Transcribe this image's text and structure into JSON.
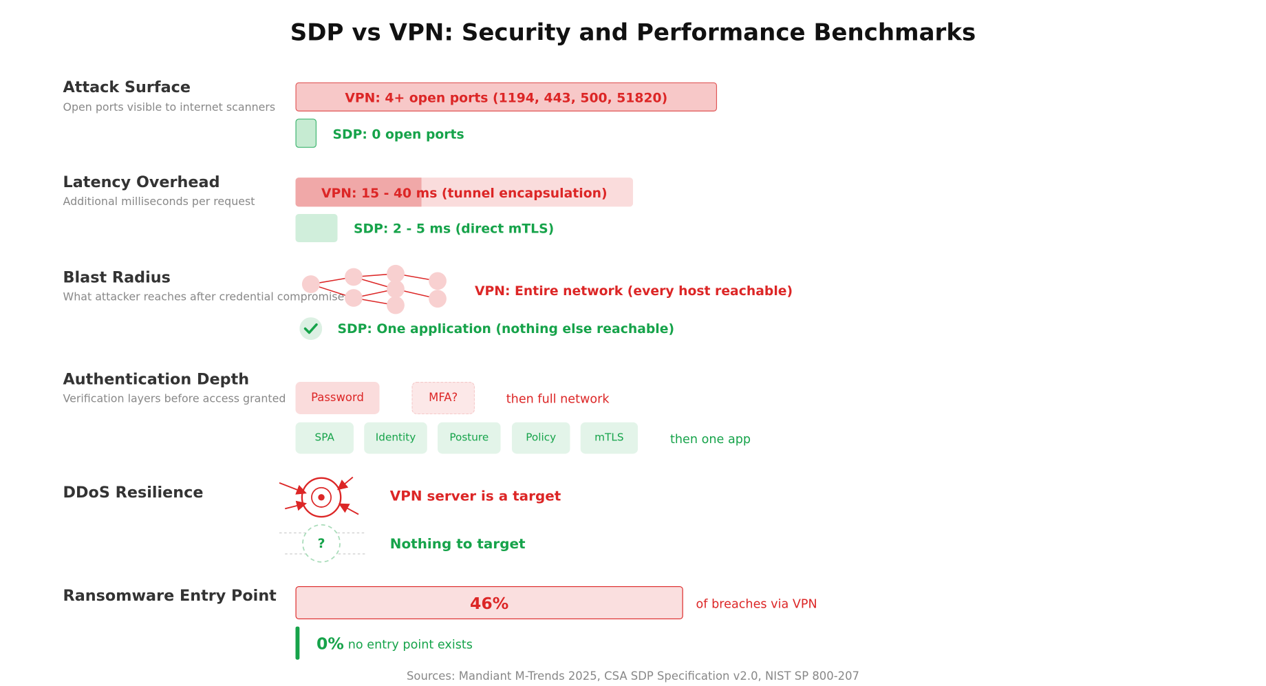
{
  "title": "SDP vs VPN: Security and Performance Benchmarks",
  "colors": {
    "vpn": "#dc2626",
    "sdp": "#16a34a"
  },
  "attack_surface": {
    "label": "Attack Surface",
    "sub": "Open ports visible to internet scanners",
    "vpn": "VPN: 4+ open ports (1194, 443, 500, 51820)",
    "sdp": "SDP: 0 open ports"
  },
  "latency": {
    "label": "Latency Overhead",
    "sub": "Additional milliseconds per request",
    "vpn": "VPN: 15 - 40 ms (tunnel encapsulation)",
    "sdp": "SDP: 2 - 5 ms (direct mTLS)"
  },
  "blast": {
    "label": "Blast Radius",
    "sub": "What attacker reaches after credential compromise",
    "vpn": "VPN: Entire network (every host reachable)",
    "sdp": "SDP: One application (nothing else reachable)",
    "sdp_icon": "check-icon"
  },
  "auth": {
    "label": "Authentication Depth",
    "sub": "Verification layers before access granted",
    "vpn_steps": [
      "Password",
      "MFA?"
    ],
    "vpn_result": "then full network",
    "sdp_steps": [
      "SPA",
      "Identity",
      "Posture",
      "Policy",
      "mTLS"
    ],
    "sdp_result": "then one app"
  },
  "ddos": {
    "label": "DDoS Resilience",
    "vpn": "VPN server is a target",
    "sdp": "Nothing to target",
    "vpn_icon": "target-icon",
    "sdp_icon": "question-icon",
    "sdp_glyph": "?"
  },
  "ransomware": {
    "label": "Ransomware Entry Point",
    "vpn_value": "46%",
    "vpn_text": "of breaches via VPN",
    "sdp_value": "0%",
    "sdp_text": "no entry point exists"
  },
  "sources": "Sources: Mandiant M-Trends 2025, CSA SDP Specification v2.0, NIST SP 800-207"
}
